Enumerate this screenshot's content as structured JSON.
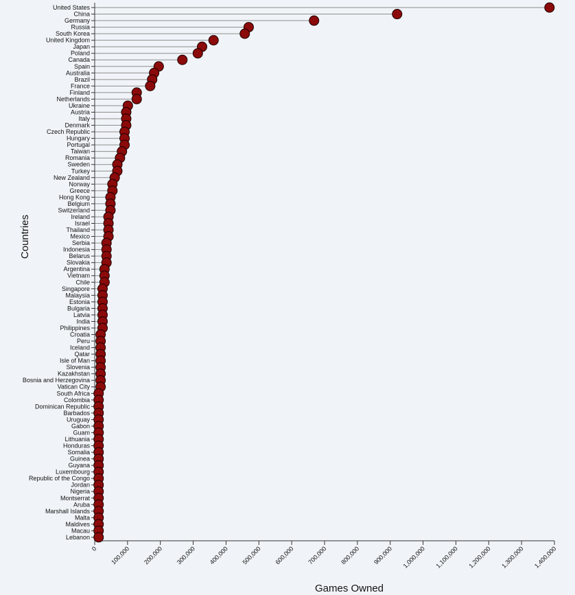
{
  "chart_data": {
    "type": "lollipop",
    "xlabel": "Games Owned",
    "ylabel": "Countries",
    "xlim": [
      0,
      1400000
    ],
    "x_ticks": [
      0,
      100000,
      200000,
      300000,
      400000,
      500000,
      600000,
      700000,
      800000,
      900000,
      1000000,
      1100000,
      1200000,
      1300000,
      1400000
    ],
    "x_tick_labels": [
      "0",
      "100,000",
      "200,000",
      "300,000",
      "400,000",
      "500,000",
      "600,000",
      "700,000",
      "800,000",
      "900,000",
      "1,000,000",
      "1,100,000",
      "1,200,000",
      "1,300,000",
      "1,400,000"
    ],
    "grid": false,
    "categories": [
      "United States",
      "China",
      "Germany",
      "Russia",
      "South Korea",
      "United Kingdom",
      "Japan",
      "Poland",
      "Canada",
      "Spain",
      "Australia",
      "Brazil",
      "France",
      "Finland",
      "Netherlands",
      "Ukraine",
      "Austria",
      "Italy",
      "Denmark",
      "Czech Republic",
      "Hungary",
      "Portugal",
      "Taiwan",
      "Romania",
      "Sweden",
      "Turkey",
      "New Zealand",
      "Norway",
      "Greece",
      "Hong Kong",
      "Belgium",
      "Switzerland",
      "Ireland",
      "Israel",
      "Thailand",
      "Mexico",
      "Serbia",
      "Indonesia",
      "Belarus",
      "Slovakia",
      "Argentina",
      "Vietnam",
      "Chile",
      "Singapore",
      "Malaysia",
      "Estonia",
      "Bulgaria",
      "Latvia",
      "India",
      "Philippines",
      "Croatia",
      "Peru",
      "Iceland",
      "Qatar",
      "Isle of Man",
      "Slovenia",
      "Kazakhstan",
      "Bosnia and Herzegovina",
      "Vatican City",
      "South Africa",
      "Colombia",
      "Dominican Republic",
      "Barbados",
      "Uruguay",
      "Gabon",
      "Guam",
      "Lithuania",
      "Honduras",
      "Somalia",
      "Guinea",
      "Guyana",
      "Luxembourg",
      "Republic of the Congo",
      "Jordan",
      "Nigeria",
      "Montserrat",
      "Aruba",
      "Marshall Islands",
      "Malta",
      "Maldives",
      "Macau",
      "Lebanon"
    ],
    "values": [
      1385000,
      921000,
      668000,
      469000,
      457000,
      362000,
      327000,
      314000,
      267000,
      195000,
      181000,
      175000,
      169000,
      128000,
      128000,
      101000,
      96000,
      96000,
      96000,
      91000,
      91000,
      91000,
      83000,
      77000,
      69000,
      69000,
      61000,
      54000,
      54000,
      48000,
      48000,
      48000,
      42000,
      42000,
      42000,
      42000,
      36000,
      36000,
      36000,
      36000,
      30000,
      30000,
      30000,
      24000,
      24000,
      24000,
      24000,
      24000,
      24000,
      24000,
      18000,
      18000,
      18000,
      18000,
      18000,
      18000,
      18000,
      18000,
      18000,
      12000,
      12000,
      12000,
      12000,
      12000,
      12000,
      12000,
      12000,
      12000,
      12000,
      12000,
      12000,
      12000,
      12000,
      12000,
      12000,
      12000,
      12000,
      12000,
      12000,
      12000,
      12000,
      12000
    ],
    "colors": {
      "dot": "#8b0a0a",
      "dot_stroke": "#1a0000",
      "stem": "#8c8c8c",
      "axis": "#333333",
      "background": "#f0f4f8"
    }
  }
}
